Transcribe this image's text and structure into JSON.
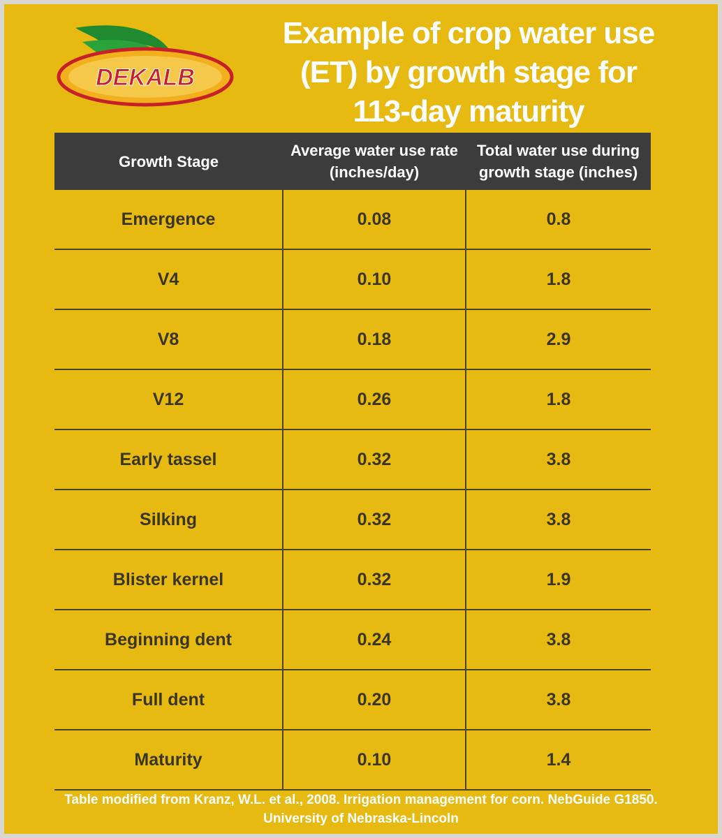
{
  "logo": {
    "text": "DEKALB"
  },
  "header": {
    "title": "Example of crop water use (ET) by growth stage for 113-day maturity"
  },
  "table": {
    "columns": [
      "Growth Stage",
      "Average water use rate (inches/day)",
      "Total water use during growth stage (inches)"
    ],
    "rows": [
      [
        "Emergence",
        "0.08",
        "0.8"
      ],
      [
        "V4",
        "0.10",
        "1.8"
      ],
      [
        "V8",
        "0.18",
        "2.9"
      ],
      [
        "V12",
        "0.26",
        "1.8"
      ],
      [
        "Early tassel",
        "0.32",
        "3.8"
      ],
      [
        "Silking",
        "0.32",
        "3.8"
      ],
      [
        "Blister kernel",
        "0.32",
        "1.9"
      ],
      [
        "Beginning dent",
        "0.24",
        "3.8"
      ],
      [
        "Full dent",
        "0.20",
        "3.8"
      ],
      [
        "Maturity",
        "0.10",
        "1.4"
      ]
    ]
  },
  "footer": {
    "text": "Table modified from Kranz, W.L. et al., 2008. Irrigation management for corn. NebGuide G1850. University of Nebraska-Lincoln"
  }
}
